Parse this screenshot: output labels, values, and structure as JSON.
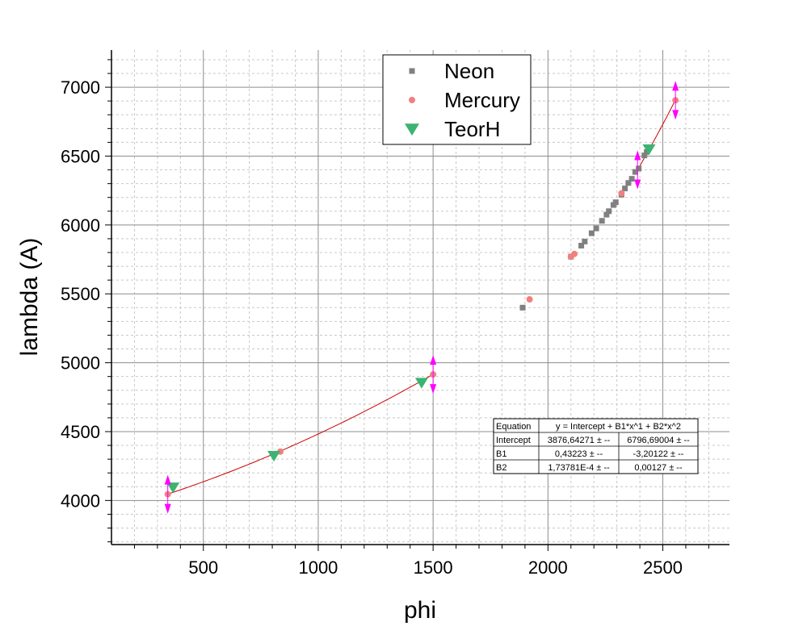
{
  "chart_data": {
    "type": "scatter",
    "xlabel": "phi",
    "ylabel": "lambda (A)",
    "xlim": [
      100,
      2790
    ],
    "ylim": [
      3680,
      7270
    ],
    "x_ticks": [
      500,
      1000,
      1500,
      2000,
      2500
    ],
    "y_ticks": [
      4000,
      4500,
      5000,
      5500,
      6000,
      6500,
      7000
    ],
    "grid": true,
    "legend_position": "top-center",
    "series": [
      {
        "name": "Neon",
        "marker": "square",
        "color": "#808080",
        "points": [
          [
            1890,
            5400
          ],
          [
            2100,
            5770
          ],
          [
            2145,
            5850
          ],
          [
            2160,
            5880
          ],
          [
            2190,
            5940
          ],
          [
            2210,
            5975
          ],
          [
            2235,
            6030
          ],
          [
            2255,
            6075
          ],
          [
            2265,
            6100
          ],
          [
            2285,
            6145
          ],
          [
            2295,
            6165
          ],
          [
            2320,
            6220
          ],
          [
            2335,
            6265
          ],
          [
            2350,
            6305
          ],
          [
            2365,
            6335
          ],
          [
            2380,
            6385
          ],
          [
            2395,
            6410
          ],
          [
            2420,
            6505
          ],
          [
            2430,
            6530
          ]
        ]
      },
      {
        "name": "Mercury",
        "marker": "circle",
        "color": "#f08080",
        "points": [
          [
            345,
            4045
          ],
          [
            835,
            4355
          ],
          [
            1500,
            4915
          ],
          [
            1920,
            5460
          ],
          [
            2100,
            5770
          ],
          [
            2115,
            5790
          ],
          [
            2320,
            6230
          ],
          [
            2555,
            6905
          ]
        ]
      },
      {
        "name": "TeorH",
        "marker": "triangle-down",
        "color": "#3cb371",
        "points": [
          [
            368,
            4095
          ],
          [
            807,
            4325
          ],
          [
            1450,
            4855
          ],
          [
            2440,
            6550
          ]
        ]
      }
    ],
    "fit_line": {
      "color": "#cc0000",
      "segments": [
        {
          "intercept": 3876.64271,
          "b1": 0.43223,
          "b2": 0.000173781,
          "x_range": [
            345,
            1500
          ]
        },
        {
          "intercept": 6796.69004,
          "b1": -3.20122,
          "b2": 0.00127,
          "x_range": [
            2380,
            2555
          ]
        }
      ]
    },
    "error_markers": {
      "color": "#ff00ff",
      "points": [
        [
          345,
          4045
        ],
        [
          1500,
          4915
        ],
        [
          2390,
          6400
        ],
        [
          2555,
          6905
        ]
      ]
    },
    "fit_table": {
      "header": [
        "Equation",
        "y = Intercept + B1*x^1 + B2*x^2"
      ],
      "rows": [
        [
          "Intercept",
          "3876,64271 ± --",
          "6796,69004 ± --"
        ],
        [
          "B1",
          "0,43223 ± --",
          "-3,20122 ± --"
        ],
        [
          "B2",
          "1,73781E-4 ± --",
          "0,00127 ± --"
        ]
      ]
    }
  }
}
